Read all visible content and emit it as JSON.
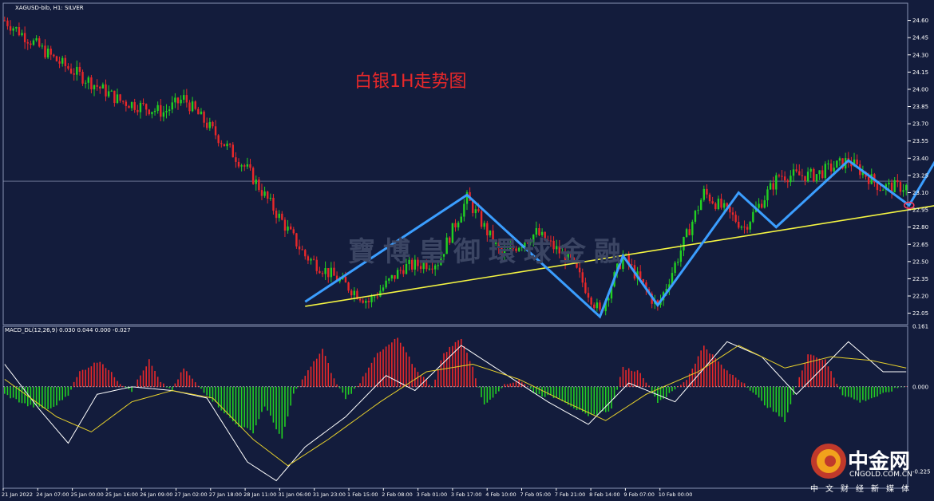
{
  "symbol_label": "XAGUSD-bib, H1: SILVER",
  "annotation": "白银1H走势图",
  "watermark": "寶博皇御環球金融",
  "macd_label": "MACD_DL(12,26,9) 0.030 0.044 0.000 -0.027",
  "logo": {
    "name": "中金网",
    "domain": "CNGOLD.COM.CN",
    "subtitle": "中文财经新媒体"
  },
  "colors": {
    "background": "#131c3c",
    "bull": "#22d022",
    "bear": "#e8282a",
    "trendline": "#f5f542",
    "zigzag": "#3b9eff",
    "macd_pos": "#e8282a",
    "macd_neg": "#22d022"
  },
  "chart_data": [
    {
      "type": "candlestick",
      "title": "XAGUSD-bib, H1: SILVER",
      "ylim": [
        21.95,
        24.75
      ],
      "yticks": [
        "24.60",
        "24.45",
        "24.30",
        "24.15",
        "24.00",
        "23.85",
        "23.70",
        "23.55",
        "23.40",
        "23.25",
        "23.10",
        "22.95",
        "22.80",
        "22.65",
        "22.50",
        "22.35",
        "22.20",
        "22.05"
      ],
      "current_price": 23.2,
      "x_labels": [
        "21 Jan 2022",
        "24 Jan 07:00",
        "25 Jan 00:00",
        "25 Jan 16:00",
        "26 Jan 09:00",
        "27 Jan 02:00",
        "27 Jan 18:00",
        "28 Jan 11:00",
        "31 Jan 06:00",
        "31 Jan 23:00",
        "1 Feb 15:00",
        "2 Feb 08:00",
        "3 Feb 01:00",
        "3 Feb 17:00",
        "4 Feb 10:00",
        "7 Feb 05:00",
        "7 Feb 21:00",
        "8 Feb 14:00",
        "9 Feb 07:00",
        "10 Feb 00:00"
      ],
      "price_anchors": [
        [
          0,
          24.6
        ],
        [
          18,
          24.25
        ],
        [
          40,
          23.9
        ],
        [
          55,
          23.8
        ],
        [
          62,
          23.92
        ],
        [
          84,
          23.3
        ],
        [
          104,
          22.55
        ],
        [
          126,
          22.15
        ],
        [
          138,
          22.45
        ],
        [
          150,
          22.5
        ],
        [
          160,
          23.05
        ],
        [
          172,
          22.55
        ],
        [
          184,
          22.75
        ],
        [
          196,
          22.5
        ],
        [
          206,
          22.05
        ],
        [
          214,
          22.55
        ],
        [
          226,
          22.1
        ],
        [
          242,
          23.1
        ],
        [
          256,
          22.8
        ],
        [
          268,
          23.25
        ],
        [
          280,
          23.25
        ],
        [
          292,
          23.38
        ],
        [
          303,
          23.15
        ]
      ],
      "trendline": {
        "from": [
          104,
          22.11
        ],
        "to": [
          355,
          23.12
        ]
      },
      "zigzag": [
        [
          104,
          22.15
        ],
        [
          160,
          23.08
        ],
        [
          206,
          22.02
        ],
        [
          214,
          22.55
        ],
        [
          226,
          22.12
        ],
        [
          254,
          23.1
        ],
        [
          267,
          22.8
        ],
        [
          292,
          23.38
        ],
        [
          313,
          22.99
        ],
        [
          333,
          23.84
        ]
      ]
    },
    {
      "type": "bar",
      "title": "MACD_DL(12,26,9)",
      "ylim": [
        -0.27,
        0.161
      ],
      "yticks": [
        "0.161",
        "0.000",
        "-0.225"
      ],
      "histogram_anchors": [
        [
          0,
          -0.02
        ],
        [
          8,
          -0.05
        ],
        [
          16,
          -0.06
        ],
        [
          22,
          -0.02
        ],
        [
          26,
          0.04
        ],
        [
          33,
          0.07
        ],
        [
          40,
          0.01
        ],
        [
          44,
          -0.01
        ],
        [
          50,
          0.07
        ],
        [
          54,
          0.01
        ],
        [
          58,
          -0.01
        ],
        [
          62,
          0.05
        ],
        [
          66,
          0.01
        ],
        [
          70,
          -0.02
        ],
        [
          80,
          -0.1
        ],
        [
          86,
          -0.12
        ],
        [
          90,
          -0.05
        ],
        [
          96,
          -0.14
        ],
        [
          100,
          -0.02
        ],
        [
          104,
          0.03
        ],
        [
          110,
          0.1
        ],
        [
          114,
          0.02
        ],
        [
          118,
          -0.03
        ],
        [
          122,
          0.0
        ],
        [
          128,
          0.08
        ],
        [
          136,
          0.13
        ],
        [
          142,
          0.05
        ],
        [
          148,
          0.0
        ],
        [
          152,
          0.09
        ],
        [
          158,
          0.13
        ],
        [
          162,
          0.05
        ],
        [
          166,
          -0.05
        ],
        [
          172,
          0.0
        ],
        [
          178,
          0.02
        ],
        [
          184,
          -0.02
        ],
        [
          192,
          -0.03
        ],
        [
          202,
          -0.08
        ],
        [
          210,
          -0.06
        ],
        [
          214,
          0.05
        ],
        [
          220,
          0.04
        ],
        [
          226,
          -0.04
        ],
        [
          230,
          -0.02
        ],
        [
          236,
          0.02
        ],
        [
          242,
          0.11
        ],
        [
          250,
          0.04
        ],
        [
          256,
          0.01
        ],
        [
          262,
          -0.04
        ],
        [
          270,
          -0.09
        ],
        [
          278,
          0.09
        ],
        [
          284,
          0.07
        ],
        [
          290,
          -0.02
        ],
        [
          296,
          -0.04
        ],
        [
          304,
          -0.02
        ],
        [
          310,
          0.0
        ]
      ],
      "line_anchors": [
        [
          0,
          0.06
        ],
        [
          12,
          -0.06
        ],
        [
          22,
          -0.15
        ],
        [
          32,
          -0.02
        ],
        [
          44,
          0.0
        ],
        [
          58,
          -0.01
        ],
        [
          70,
          -0.03
        ],
        [
          84,
          -0.2
        ],
        [
          94,
          -0.25
        ],
        [
          104,
          -0.16
        ],
        [
          118,
          -0.08
        ],
        [
          132,
          0.03
        ],
        [
          142,
          -0.01
        ],
        [
          158,
          0.11
        ],
        [
          170,
          0.05
        ],
        [
          188,
          -0.04
        ],
        [
          202,
          -0.1
        ],
        [
          216,
          0.01
        ],
        [
          232,
          -0.04
        ],
        [
          250,
          0.12
        ],
        [
          262,
          0.08
        ],
        [
          274,
          -0.02
        ],
        [
          292,
          0.12
        ],
        [
          304,
          0.04
        ],
        [
          312,
          0.04
        ]
      ],
      "signal_anchors": [
        [
          0,
          0.02
        ],
        [
          18,
          -0.08
        ],
        [
          30,
          -0.12
        ],
        [
          44,
          -0.04
        ],
        [
          58,
          -0.01
        ],
        [
          72,
          -0.03
        ],
        [
          86,
          -0.14
        ],
        [
          98,
          -0.21
        ],
        [
          112,
          -0.14
        ],
        [
          130,
          -0.04
        ],
        [
          146,
          0.04
        ],
        [
          162,
          0.06
        ],
        [
          178,
          0.02
        ],
        [
          194,
          -0.04
        ],
        [
          208,
          -0.09
        ],
        [
          222,
          -0.02
        ],
        [
          240,
          0.04
        ],
        [
          254,
          0.11
        ],
        [
          270,
          0.05
        ],
        [
          286,
          0.08
        ],
        [
          300,
          0.07
        ],
        [
          312,
          0.05
        ]
      ]
    }
  ]
}
